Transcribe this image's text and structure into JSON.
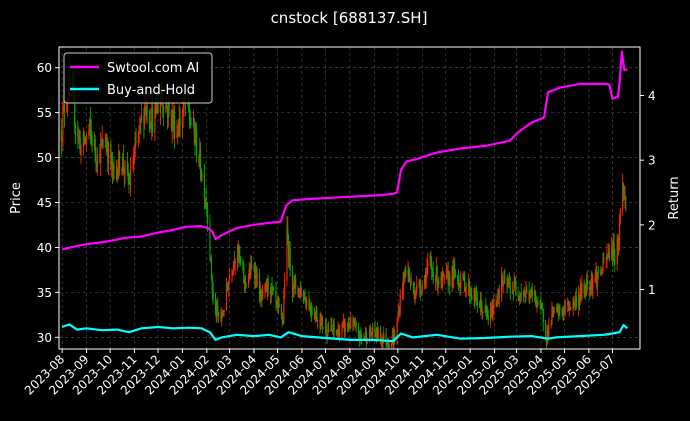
{
  "chart_data": {
    "type": "line",
    "title": "cnstock [688137.SH]",
    "xlabel": "",
    "ylabel": "Price",
    "y2label": "Return",
    "legend_position": "top-left",
    "grid": true,
    "colors": {
      "background": "#000000",
      "axis": "#ffffff",
      "grid": "#555555",
      "strategy": "#ff00ff",
      "buy_hold": "#00ffff",
      "candle_up": "#ff2200",
      "candle_down": "#00aa00"
    },
    "x_range": [
      "2023-07-28",
      "2025-08-05"
    ],
    "x_ticks": [
      "2023-08",
      "2023-09",
      "2023-10",
      "2023-11",
      "2023-12",
      "2024-01",
      "2024-02",
      "2024-03",
      "2024-04",
      "2024-05",
      "2024-06",
      "2024-07",
      "2024-08",
      "2024-09",
      "2024-10",
      "2024-11",
      "2024-12",
      "2025-01",
      "2025-02",
      "2025-03",
      "2025-04",
      "2025-05",
      "2025-06",
      "2025-07"
    ],
    "y_left": {
      "range": [
        28.7,
        62.3
      ],
      "ticks": [
        30,
        35,
        40,
        45,
        50,
        55,
        60
      ]
    },
    "y_right": {
      "range": [
        0.08,
        4.75
      ],
      "ticks": [
        1,
        2,
        3,
        4
      ]
    },
    "series": [
      {
        "name": "Swtool.com AI",
        "axis": "right",
        "points": [
          [
            "2023-08-01",
            1.62
          ],
          [
            "2023-08-15",
            1.66
          ],
          [
            "2023-09-01",
            1.7
          ],
          [
            "2023-09-15",
            1.72
          ],
          [
            "2023-10-01",
            1.75
          ],
          [
            "2023-10-20",
            1.8
          ],
          [
            "2023-11-10",
            1.82
          ],
          [
            "2023-12-01",
            1.88
          ],
          [
            "2023-12-20",
            1.92
          ],
          [
            "2024-01-05",
            1.97
          ],
          [
            "2024-01-25",
            1.98
          ],
          [
            "2024-02-02",
            1.95
          ],
          [
            "2024-02-08",
            1.9
          ],
          [
            "2024-02-12",
            1.78
          ],
          [
            "2024-02-20",
            1.84
          ],
          [
            "2024-03-01",
            1.9
          ],
          [
            "2024-03-10",
            1.95
          ],
          [
            "2024-04-01",
            2.0
          ],
          [
            "2024-04-20",
            2.03
          ],
          [
            "2024-05-05",
            2.05
          ],
          [
            "2024-05-12",
            2.3
          ],
          [
            "2024-05-20",
            2.38
          ],
          [
            "2024-06-10",
            2.4
          ],
          [
            "2024-07-10",
            2.42
          ],
          [
            "2024-08-10",
            2.44
          ],
          [
            "2024-09-10",
            2.46
          ],
          [
            "2024-09-25",
            2.48
          ],
          [
            "2024-09-30",
            2.5
          ],
          [
            "2024-10-05",
            2.85
          ],
          [
            "2024-10-12",
            2.98
          ],
          [
            "2024-10-25",
            3.02
          ],
          [
            "2024-11-20",
            3.12
          ],
          [
            "2024-12-20",
            3.18
          ],
          [
            "2025-01-20",
            3.22
          ],
          [
            "2025-02-20",
            3.3
          ],
          [
            "2025-03-05",
            3.45
          ],
          [
            "2025-03-20",
            3.58
          ],
          [
            "2025-04-05",
            3.66
          ],
          [
            "2025-04-10",
            4.05
          ],
          [
            "2025-04-25",
            4.12
          ],
          [
            "2025-05-20",
            4.18
          ],
          [
            "2025-06-20",
            4.18
          ],
          [
            "2025-06-27",
            4.17
          ],
          [
            "2025-07-01",
            3.95
          ],
          [
            "2025-07-08",
            3.98
          ],
          [
            "2025-07-10",
            4.2
          ],
          [
            "2025-07-13",
            4.68
          ],
          [
            "2025-07-16",
            4.4
          ],
          [
            "2025-07-20",
            4.4
          ]
        ]
      },
      {
        "name": "Buy-and-Hold",
        "axis": "right",
        "points": [
          [
            "2023-08-01",
            0.42
          ],
          [
            "2023-08-10",
            0.46
          ],
          [
            "2023-08-20",
            0.38
          ],
          [
            "2023-09-01",
            0.4
          ],
          [
            "2023-09-20",
            0.37
          ],
          [
            "2023-10-10",
            0.38
          ],
          [
            "2023-10-25",
            0.34
          ],
          [
            "2023-11-10",
            0.4
          ],
          [
            "2023-12-01",
            0.42
          ],
          [
            "2023-12-20",
            0.4
          ],
          [
            "2024-01-10",
            0.41
          ],
          [
            "2024-01-25",
            0.4
          ],
          [
            "2024-02-05",
            0.34
          ],
          [
            "2024-02-12",
            0.22
          ],
          [
            "2024-02-20",
            0.26
          ],
          [
            "2024-03-10",
            0.3
          ],
          [
            "2024-04-01",
            0.28
          ],
          [
            "2024-04-20",
            0.3
          ],
          [
            "2024-05-05",
            0.26
          ],
          [
            "2024-05-15",
            0.34
          ],
          [
            "2024-06-01",
            0.28
          ],
          [
            "2024-07-01",
            0.25
          ],
          [
            "2024-08-01",
            0.22
          ],
          [
            "2024-09-01",
            0.22
          ],
          [
            "2024-09-25",
            0.2
          ],
          [
            "2024-10-05",
            0.32
          ],
          [
            "2024-10-20",
            0.26
          ],
          [
            "2024-11-20",
            0.3
          ],
          [
            "2024-12-20",
            0.24
          ],
          [
            "2025-01-20",
            0.25
          ],
          [
            "2025-02-20",
            0.27
          ],
          [
            "2025-03-20",
            0.28
          ],
          [
            "2025-04-10",
            0.24
          ],
          [
            "2025-04-20",
            0.26
          ],
          [
            "2025-05-20",
            0.28
          ],
          [
            "2025-06-20",
            0.3
          ],
          [
            "2025-07-01",
            0.32
          ],
          [
            "2025-07-10",
            0.34
          ],
          [
            "2025-07-15",
            0.45
          ],
          [
            "2025-07-20",
            0.4
          ]
        ]
      },
      {
        "name": "Price",
        "axis": "left",
        "points": [
          [
            "2023-07-31",
            53.0
          ],
          [
            "2023-08-05",
            56.5
          ],
          [
            "2023-08-12",
            59.0
          ],
          [
            "2023-08-18",
            54.0
          ],
          [
            "2023-08-25",
            51.0
          ],
          [
            "2023-09-05",
            53.0
          ],
          [
            "2023-09-15",
            50.0
          ],
          [
            "2023-09-25",
            52.0
          ],
          [
            "2023-10-05",
            48.0
          ],
          [
            "2023-10-15",
            50.0
          ],
          [
            "2023-10-25",
            47.0
          ],
          [
            "2023-11-05",
            52.0
          ],
          [
            "2023-11-15",
            56.0
          ],
          [
            "2023-11-25",
            54.0
          ],
          [
            "2023-12-05",
            57.0
          ],
          [
            "2023-12-15",
            55.0
          ],
          [
            "2023-12-25",
            53.0
          ],
          [
            "2024-01-05",
            56.0
          ],
          [
            "2024-01-15",
            53.0
          ],
          [
            "2024-01-22",
            50.0
          ],
          [
            "2024-01-28",
            47.0
          ],
          [
            "2024-02-02",
            44.0
          ],
          [
            "2024-02-06",
            38.0
          ],
          [
            "2024-02-10",
            33.0
          ],
          [
            "2024-02-20",
            32.0
          ],
          [
            "2024-03-01",
            37.0
          ],
          [
            "2024-03-10",
            40.0
          ],
          [
            "2024-03-20",
            36.0
          ],
          [
            "2024-04-01",
            38.0
          ],
          [
            "2024-04-10",
            34.0
          ],
          [
            "2024-04-20",
            36.0
          ],
          [
            "2024-05-01",
            33.0
          ],
          [
            "2024-05-08",
            32.0
          ],
          [
            "2024-05-12",
            42.0
          ],
          [
            "2024-05-20",
            36.0
          ],
          [
            "2024-06-01",
            35.0
          ],
          [
            "2024-06-15",
            33.0
          ],
          [
            "2024-07-01",
            31.0
          ],
          [
            "2024-07-15",
            30.5
          ],
          [
            "2024-08-01",
            31.5
          ],
          [
            "2024-08-15",
            30.0
          ],
          [
            "2024-09-01",
            30.5
          ],
          [
            "2024-09-20",
            29.5
          ],
          [
            "2024-09-28",
            30.0
          ],
          [
            "2024-10-05",
            35.0
          ],
          [
            "2024-10-12",
            38.0
          ],
          [
            "2024-10-20",
            35.0
          ],
          [
            "2024-11-01",
            36.0
          ],
          [
            "2024-11-10",
            38.0
          ],
          [
            "2024-11-25",
            36.0
          ],
          [
            "2024-12-10",
            37.0
          ],
          [
            "2024-12-25",
            36.0
          ],
          [
            "2025-01-10",
            34.0
          ],
          [
            "2025-01-25",
            32.0
          ],
          [
            "2025-02-10",
            36.0
          ],
          [
            "2025-02-25",
            35.5
          ],
          [
            "2025-03-10",
            35.0
          ],
          [
            "2025-03-25",
            34.5
          ],
          [
            "2025-04-05",
            32.0
          ],
          [
            "2025-04-08",
            30.0
          ],
          [
            "2025-04-15",
            32.5
          ],
          [
            "2025-04-30",
            33.0
          ],
          [
            "2025-05-15",
            34.0
          ],
          [
            "2025-05-30",
            36.0
          ],
          [
            "2025-06-15",
            37.0
          ],
          [
            "2025-06-30",
            40.0
          ],
          [
            "2025-07-05",
            39.0
          ],
          [
            "2025-07-10",
            42.0
          ],
          [
            "2025-07-13",
            49.0
          ],
          [
            "2025-07-16",
            45.0
          ],
          [
            "2025-07-20",
            46.0
          ]
        ]
      }
    ]
  }
}
